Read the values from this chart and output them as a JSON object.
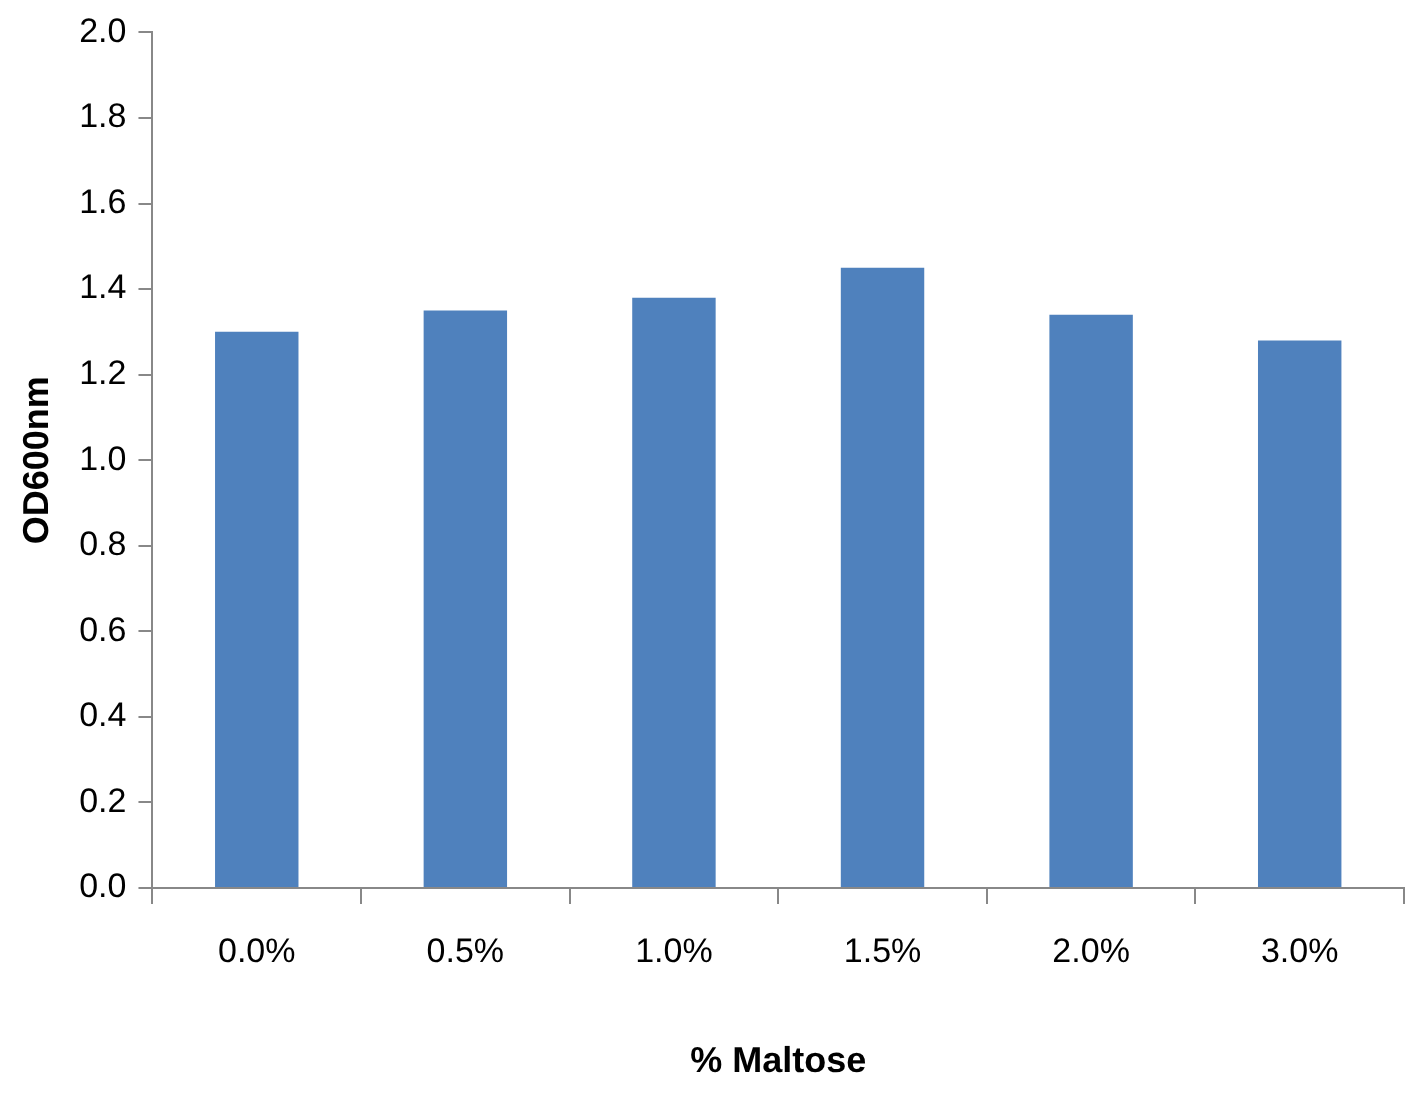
{
  "chart_data": {
    "type": "bar",
    "xlabel": "% Maltose",
    "ylabel": "OD600nm",
    "categories": [
      "0.0%",
      "0.5%",
      "1.0%",
      "1.5%",
      "2.0%",
      "3.0%"
    ],
    "values": [
      1.3,
      1.35,
      1.38,
      1.45,
      1.34,
      1.28
    ],
    "color": "#4f81bd",
    "ylim": [
      0,
      2.0
    ],
    "yticks": [
      {
        "value": 0,
        "label": "0.0"
      },
      {
        "value": 0.2,
        "label": "0.2"
      },
      {
        "value": 0.4,
        "label": "0.4"
      },
      {
        "value": 0.6,
        "label": "0.6"
      },
      {
        "value": 0.8,
        "label": "0.8"
      },
      {
        "value": 1.0,
        "label": "1.0"
      },
      {
        "value": 1.2,
        "label": "1.2"
      },
      {
        "value": 1.4,
        "label": "1.4"
      },
      {
        "value": 1.6,
        "label": "1.6"
      },
      {
        "value": 1.8,
        "label": "1.8"
      },
      {
        "value": 2.0,
        "label": "2.0"
      }
    ],
    "grid": false,
    "legend": false
  }
}
